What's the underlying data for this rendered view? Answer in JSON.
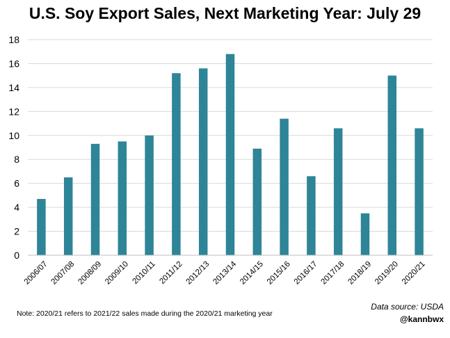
{
  "title": "U.S. Soy Export Sales, Next Marketing Year: July 29",
  "note": "Note: 2020/21 refers to 2021/22 sales made during the 2020/21 marketing year",
  "source": "Data source: USDA",
  "handle": "@kannbwx",
  "colors": {
    "bar": "#2e8597",
    "grid": "#d9d9d9",
    "axis": "#000000"
  },
  "chart_data": {
    "type": "bar",
    "title": "U.S. Soy Export Sales, Next Marketing Year: July 29",
    "xlabel": "",
    "ylabel": "",
    "ylim": [
      0,
      18
    ],
    "yticks": [
      0,
      2,
      4,
      6,
      8,
      10,
      12,
      14,
      16,
      18
    ],
    "grid": true,
    "legend": "none",
    "categories": [
      "2006/07",
      "2007/08",
      "2008/09",
      "2009/10",
      "2010/11",
      "2011/12",
      "2012/13",
      "2013/14",
      "2014/15",
      "2015/16",
      "2016/17",
      "2017/18",
      "2018/19",
      "2019/20",
      "2020/21"
    ],
    "values": [
      4.7,
      6.5,
      9.3,
      9.5,
      10.0,
      15.2,
      15.6,
      16.8,
      8.9,
      11.4,
      6.6,
      10.6,
      3.5,
      15.0,
      10.6
    ]
  }
}
